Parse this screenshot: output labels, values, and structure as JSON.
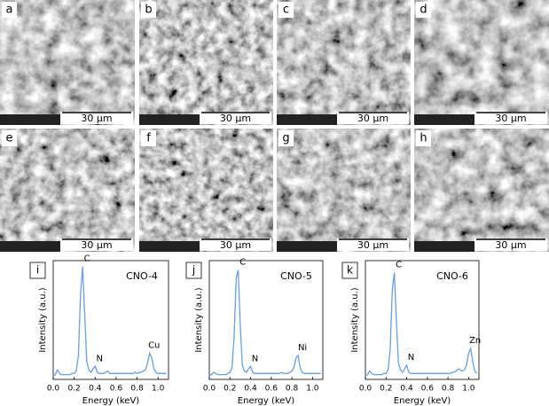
{
  "panels": [
    {
      "label": "a",
      "scale_bar": "30 μm"
    },
    {
      "label": "b",
      "scale_bar": "30 μm"
    },
    {
      "label": "c",
      "scale_bar": "30 μm"
    },
    {
      "label": "d",
      "scale_bar": "30 μm"
    },
    {
      "label": "e",
      "scale_bar": "30 μm"
    },
    {
      "label": "f",
      "scale_bar": "30 μm"
    },
    {
      "label": "g",
      "scale_bar": "30 μm"
    },
    {
      "label": "h",
      "scale_bar": "30 μm"
    }
  ],
  "chart_data": [
    {
      "type": "line",
      "panel": "i",
      "title": "CNO-4",
      "xlabel": "Energy (keV)",
      "ylabel": "Intensity (a.u.)",
      "color": "#6a9fd8",
      "xlim": [
        0,
        1.1
      ],
      "ylim": [
        0,
        100
      ],
      "xticks": [
        {
          "value": 0,
          "label": "0.0"
        },
        0.2,
        0.4,
        0.6,
        0.8,
        {
          "value": 1,
          "label": "1.0"
        }
      ],
      "x": [
        0,
        0.02,
        0.04,
        0.06,
        0.08,
        0.1,
        0.12,
        0.14,
        0.16,
        0.18,
        0.2,
        0.22,
        0.24,
        0.26,
        0.28,
        0.3,
        0.32,
        0.34,
        0.36,
        0.38,
        0.4,
        0.42,
        0.44,
        0.46,
        0.48,
        0.5,
        0.52,
        0.54,
        0.56,
        0.58,
        0.6,
        0.62,
        0.64,
        0.66,
        0.68,
        0.7,
        0.72,
        0.74,
        0.76,
        0.78,
        0.8,
        0.82,
        0.84,
        0.86,
        0.88,
        0.9,
        0.92,
        0.94,
        0.96,
        0.98,
        1,
        1.02,
        1.04,
        1.06,
        1.08
      ],
      "values": [
        3,
        4,
        8,
        5,
        4,
        4,
        4,
        4,
        4,
        5,
        5,
        7,
        20,
        70,
        95,
        55,
        15,
        8,
        6,
        9,
        11,
        6,
        5,
        5,
        5,
        6,
        7,
        5,
        5,
        5,
        5,
        5,
        5,
        5,
        5,
        5,
        5,
        5,
        5,
        6,
        5,
        6,
        6,
        7,
        8,
        14,
        22,
        18,
        9,
        6,
        5,
        5,
        5,
        5,
        5
      ],
      "annotations": [
        {
          "text": "C",
          "x": 0.28
        },
        {
          "text": "N",
          "x": 0.4
        },
        {
          "text": "Cu",
          "x": 0.92
        }
      ]
    },
    {
      "type": "line",
      "panel": "j",
      "title": "CNO-5",
      "xlabel": "Energy (keV)",
      "ylabel": "Intensity (a.u.)",
      "color": "#6a9fd8",
      "xlim": [
        0,
        1.1
      ],
      "ylim": [
        0,
        100
      ],
      "xticks": [
        {
          "value": 0,
          "label": "0.0"
        },
        0.2,
        0.4,
        0.6,
        0.8,
        {
          "value": 1,
          "label": "1.0"
        }
      ],
      "x": [
        0,
        0.02,
        0.04,
        0.06,
        0.08,
        0.1,
        0.12,
        0.14,
        0.16,
        0.18,
        0.2,
        0.22,
        0.24,
        0.26,
        0.28,
        0.3,
        0.32,
        0.34,
        0.36,
        0.38,
        0.4,
        0.42,
        0.44,
        0.46,
        0.48,
        0.5,
        0.52,
        0.54,
        0.56,
        0.58,
        0.6,
        0.62,
        0.64,
        0.66,
        0.68,
        0.7,
        0.72,
        0.74,
        0.76,
        0.78,
        0.8,
        0.82,
        0.84,
        0.86,
        0.88,
        0.9,
        0.92,
        0.94,
        0.96,
        0.98,
        1,
        1.02,
        1.04,
        1.06,
        1.08
      ],
      "values": [
        3,
        4,
        6,
        5,
        4,
        4,
        4,
        4,
        4,
        5,
        6,
        10,
        35,
        85,
        92,
        45,
        12,
        7,
        6,
        9,
        11,
        6,
        5,
        5,
        5,
        5,
        5,
        5,
        5,
        5,
        5,
        5,
        5,
        5,
        5,
        6,
        5,
        5,
        5,
        6,
        7,
        10,
        18,
        20,
        10,
        6,
        5,
        5,
        5,
        5,
        5,
        5,
        5,
        5,
        5
      ],
      "annotations": [
        {
          "text": "C",
          "x": 0.28
        },
        {
          "text": "N",
          "x": 0.4
        },
        {
          "text": "Ni",
          "x": 0.86
        }
      ]
    },
    {
      "type": "line",
      "panel": "k",
      "title": "CNO-6",
      "xlabel": "Energy (keV)",
      "ylabel": "Intensity (a.u.)",
      "color": "#6a9fd8",
      "xlim": [
        0,
        1.1
      ],
      "ylim": [
        0,
        100
      ],
      "xticks": [
        {
          "value": 0,
          "label": "0.0"
        },
        0.2,
        0.4,
        0.6,
        0.8,
        {
          "value": 1,
          "label": "1.0"
        }
      ],
      "x": [
        0,
        0.02,
        0.04,
        0.06,
        0.08,
        0.1,
        0.12,
        0.14,
        0.16,
        0.18,
        0.2,
        0.22,
        0.24,
        0.26,
        0.28,
        0.3,
        0.32,
        0.34,
        0.36,
        0.38,
        0.4,
        0.42,
        0.44,
        0.46,
        0.48,
        0.5,
        0.52,
        0.54,
        0.56,
        0.58,
        0.6,
        0.62,
        0.64,
        0.66,
        0.68,
        0.7,
        0.72,
        0.74,
        0.76,
        0.78,
        0.8,
        0.82,
        0.84,
        0.86,
        0.88,
        0.9,
        0.92,
        0.94,
        0.96,
        0.98,
        1,
        1.02,
        1.04,
        1.06,
        1.08
      ],
      "values": [
        3,
        4,
        7,
        5,
        4,
        4,
        4,
        4,
        4,
        5,
        5,
        8,
        25,
        75,
        90,
        50,
        14,
        8,
        6,
        9,
        12,
        6,
        5,
        5,
        5,
        5,
        5,
        5,
        5,
        5,
        5,
        5,
        5,
        5,
        5,
        5,
        5,
        5,
        5,
        5,
        5,
        5,
        6,
        6,
        7,
        9,
        8,
        7,
        8,
        12,
        22,
        26,
        15,
        7,
        5
      ],
      "annotations": [
        {
          "text": "C",
          "x": 0.28
        },
        {
          "text": "N",
          "x": 0.4
        },
        {
          "text": "Zn",
          "x": 1.02
        }
      ]
    }
  ]
}
